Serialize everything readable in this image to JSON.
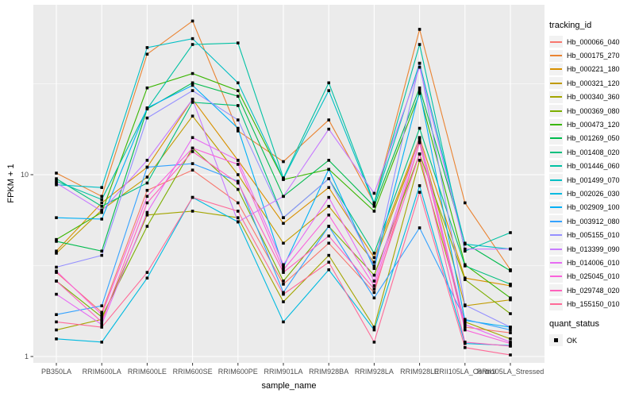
{
  "style": {
    "panel_bg": "#EBEBEB",
    "grid_color": "#FFFFFF",
    "axis_text_color": "#4D4D4D",
    "tick_color": "#333333",
    "text_color": "#000000",
    "legend_key_bg": "#F2F2F2",
    "point_color": "#000000"
  },
  "figure": {
    "y_axis": {
      "title": "FPKM + 1",
      "ticks": [
        {
          "label": "1",
          "value": 1
        },
        {
          "label": "10",
          "value": 10
        }
      ]
    },
    "x_axis": {
      "title": "sample_name"
    },
    "legend": {
      "tracking_title": "tracking_id",
      "quant_title": "quant_status",
      "quant_items": [
        {
          "label": "OK",
          "marker": "black-square"
        }
      ]
    }
  },
  "chart_data": {
    "type": "line",
    "title": "",
    "xlabel": "sample_name",
    "ylabel": "FPKM + 1",
    "y_scale": "log10",
    "ylim": [
      1,
      90
    ],
    "grid": true,
    "legend_position": "right",
    "point_marker": {
      "shape": "square",
      "color": "#000000",
      "label": "OK"
    },
    "categories": [
      "PB350LA",
      "RRIM600LA",
      "RRIM600LE",
      "RRIM600SE",
      "RRIM600PE",
      "RRIM901LA",
      "RRIM928BA",
      "RRIM928LA",
      "RRIM928LE",
      "RRII105LA_Control",
      "RRII105LA_Stressed"
    ],
    "series": [
      {
        "name": "Hb_000066_040",
        "color": "#F8766D",
        "values": [
          2.9,
          1.75,
          8.2,
          10.6,
          7.0,
          2.5,
          4.2,
          2.25,
          15.0,
          1.45,
          1.35
        ]
      },
      {
        "name": "Hb_000175_270",
        "color": "#EA8331",
        "values": [
          10.2,
          7.6,
          46,
          70,
          17.4,
          11.8,
          20,
          7.0,
          63,
          7.0,
          3.0
        ]
      },
      {
        "name": "Hb_000221_180",
        "color": "#D89000",
        "values": [
          3.8,
          7.0,
          11,
          26,
          12,
          5.4,
          8.5,
          3.5,
          16,
          2.7,
          2.45
        ]
      },
      {
        "name": "Hb_000321_120",
        "color": "#C09B00",
        "values": [
          3.7,
          6.4,
          9.7,
          21,
          10,
          4.2,
          6.7,
          3.3,
          15.5,
          1.9,
          2.05
        ]
      },
      {
        "name": "Hb_000340_360",
        "color": "#A3A500",
        "values": [
          1.4,
          1.6,
          6.0,
          6.3,
          5.8,
          2.0,
          3.6,
          1.45,
          12.0,
          1.55,
          1.25
        ]
      },
      {
        "name": "Hb_000369_080",
        "color": "#7CAE00",
        "values": [
          2.6,
          1.65,
          5.2,
          14,
          8.3,
          2.6,
          5.2,
          2.8,
          13,
          2.65,
          1.72
        ]
      },
      {
        "name": "Hb_000473_120",
        "color": "#39B600",
        "values": [
          4.4,
          6.2,
          30,
          36,
          29,
          9.4,
          10.7,
          6.3,
          28,
          3.2,
          2.1
        ]
      },
      {
        "name": "Hb_001269_050",
        "color": "#00BB4E",
        "values": [
          4.3,
          3.8,
          23,
          32,
          27,
          7.6,
          12,
          6.7,
          30,
          4.2,
          2.96
        ]
      },
      {
        "name": "Hb_001408_020",
        "color": "#00BF7D",
        "values": [
          9.5,
          6.7,
          9.0,
          25,
          24,
          5.8,
          9.5,
          3.7,
          18,
          3.15,
          2.5
        ]
      },
      {
        "name": "Hb_001446_060",
        "color": "#00C1A3",
        "values": [
          9.2,
          7.3,
          23,
          52,
          53,
          9.6,
          32,
          7.0,
          52,
          3.8,
          4.8
        ]
      },
      {
        "name": "Hb_001499_070",
        "color": "#00BFC4",
        "values": [
          8.8,
          8.5,
          50,
          56,
          32,
          9.5,
          29,
          6.9,
          41,
          4.15,
          3.9
        ]
      },
      {
        "name": "Hb_002026_030",
        "color": "#00BAE0",
        "values": [
          1.25,
          1.2,
          2.7,
          7.5,
          5.5,
          1.55,
          3.0,
          1.4,
          8.7,
          1.18,
          1.15
        ]
      },
      {
        "name": "Hb_002909_100",
        "color": "#00B0F6",
        "values": [
          5.8,
          5.7,
          23.3,
          31,
          18,
          3.1,
          10.7,
          3.05,
          29,
          1.58,
          1.45
        ]
      },
      {
        "name": "Hb_003912_080",
        "color": "#35A2FF",
        "values": [
          1.7,
          1.9,
          11,
          11.5,
          9.2,
          2.25,
          5.2,
          2.1,
          5.1,
          1.6,
          1.4
        ]
      },
      {
        "name": "Hb_005155_010",
        "color": "#9590FF",
        "values": [
          3.1,
          3.6,
          20.5,
          29,
          20,
          5.8,
          9.5,
          3.15,
          41,
          1.92,
          1.45
        ]
      },
      {
        "name": "Hb_013399_090",
        "color": "#C77CFF",
        "values": [
          9.0,
          6.3,
          12,
          26,
          5.5,
          7.6,
          17.8,
          7.9,
          39,
          3.9,
          3.9
        ]
      },
      {
        "name": "Hb_014006_010",
        "color": "#E76BF3",
        "values": [
          2.2,
          1.5,
          6.2,
          16,
          12,
          3.2,
          7.5,
          2.6,
          16,
          1.5,
          1.2
        ]
      },
      {
        "name": "Hb_025045_010",
        "color": "#FA62DB",
        "values": [
          2.95,
          1.7,
          7.6,
          14,
          11.4,
          3.0,
          6.0,
          2.45,
          15,
          1.4,
          1.18
        ]
      },
      {
        "name": "Hb_029748_020",
        "color": "#FF62BC",
        "values": [
          2.6,
          1.55,
          7.0,
          13.4,
          9.0,
          2.9,
          4.6,
          2.35,
          13,
          1.2,
          1.14
        ]
      },
      {
        "name": "Hb_155150_010",
        "color": "#FF6A98",
        "values": [
          1.55,
          1.45,
          2.9,
          7.5,
          6.3,
          2.2,
          3.3,
          1.2,
          8.0,
          1.12,
          1.02
        ]
      }
    ]
  }
}
